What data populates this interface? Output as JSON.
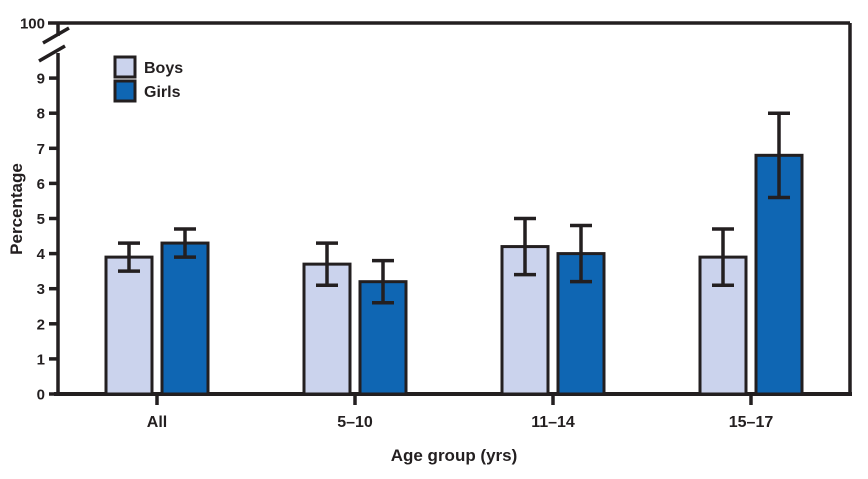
{
  "figure": {
    "background": "#ffffff",
    "ink_color": "#231f20"
  },
  "chart_data": {
    "type": "bar",
    "title": "",
    "xlabel": "Age group (yrs)",
    "ylabel": "Percentage",
    "categories": [
      "All",
      "5–10",
      "11–14",
      "15–17"
    ],
    "series": [
      {
        "name": "Boys",
        "color": "#cbd3ed",
        "values": [
          3.9,
          3.7,
          4.2,
          3.9
        ],
        "ci_low": [
          3.5,
          3.1,
          3.4,
          3.1
        ],
        "ci_high": [
          4.3,
          4.3,
          5.0,
          4.7
        ]
      },
      {
        "name": "Girls",
        "color": "#0f66b3",
        "values": [
          4.3,
          3.2,
          4.0,
          6.8
        ],
        "ci_low": [
          3.9,
          2.6,
          3.2,
          5.6
        ],
        "ci_high": [
          4.7,
          3.8,
          4.8,
          8.0
        ]
      }
    ],
    "error_bars": true,
    "y_ticks": [
      0,
      1,
      2,
      3,
      4,
      5,
      6,
      7,
      8,
      9
    ],
    "y_axis_break": {
      "present": true,
      "upper_tick_label": "100"
    },
    "ylim": [
      0,
      9.6
    ],
    "grid": false,
    "legend_position": "top-left-inside"
  }
}
